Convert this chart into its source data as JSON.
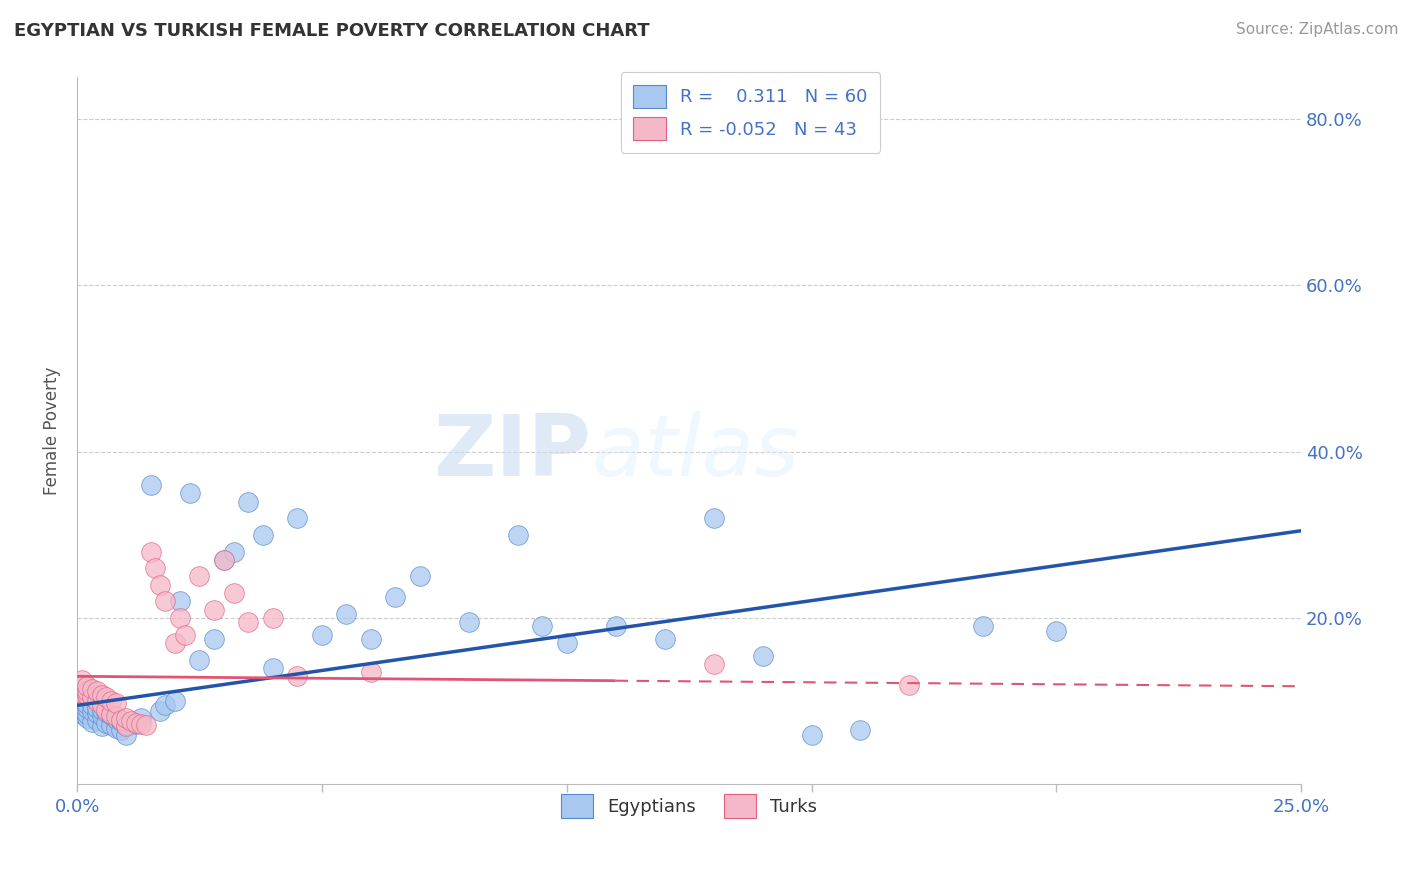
{
  "title": "EGYPTIAN VS TURKISH FEMALE POVERTY CORRELATION CHART",
  "source": "Source: ZipAtlas.com",
  "ylabel": "Female Poverty",
  "xlim": [
    0.0,
    0.25
  ],
  "ylim": [
    0.0,
    0.85
  ],
  "xtick_positions": [
    0.0,
    0.05,
    0.1,
    0.15,
    0.2,
    0.25
  ],
  "xtick_labels": [
    "0.0%",
    "",
    "",
    "",
    "",
    "25.0%"
  ],
  "ytick_positions": [
    0.2,
    0.4,
    0.6,
    0.8
  ],
  "ytick_labels": [
    "20.0%",
    "40.0%",
    "60.0%",
    "80.0%"
  ],
  "color_egyptian": "#a8c8f0",
  "color_turkish": "#f5b8c8",
  "edge_color_egyptian": "#5588cc",
  "edge_color_turkish": "#e06080",
  "line_color_egyptian": "#2255aa",
  "line_color_turkish": "#e05575",
  "watermark_zip": "ZIP",
  "watermark_atlas": "atlas",
  "legend_labels": [
    "R =    0.311   N = 60",
    "R = -0.052   N = 43"
  ],
  "bottom_labels": [
    "Egyptians",
    "Turks"
  ],
  "eg_x": [
    0.001,
    0.001,
    0.001,
    0.001,
    0.002,
    0.002,
    0.002,
    0.002,
    0.003,
    0.003,
    0.003,
    0.004,
    0.004,
    0.004,
    0.005,
    0.005,
    0.005,
    0.006,
    0.006,
    0.007,
    0.007,
    0.008,
    0.008,
    0.009,
    0.009,
    0.01,
    0.01,
    0.012,
    0.013,
    0.015,
    0.017,
    0.018,
    0.02,
    0.021,
    0.023,
    0.025,
    0.028,
    0.03,
    0.032,
    0.035,
    0.038,
    0.04,
    0.045,
    0.05,
    0.055,
    0.06,
    0.065,
    0.07,
    0.08,
    0.09,
    0.095,
    0.1,
    0.11,
    0.12,
    0.13,
    0.14,
    0.15,
    0.16,
    0.185,
    0.2
  ],
  "eg_y": [
    0.085,
    0.09,
    0.095,
    0.1,
    0.08,
    0.085,
    0.092,
    0.097,
    0.075,
    0.088,
    0.095,
    0.078,
    0.086,
    0.092,
    0.07,
    0.082,
    0.09,
    0.074,
    0.087,
    0.072,
    0.083,
    0.068,
    0.079,
    0.065,
    0.076,
    0.06,
    0.072,
    0.073,
    0.08,
    0.36,
    0.088,
    0.095,
    0.1,
    0.22,
    0.35,
    0.15,
    0.175,
    0.27,
    0.28,
    0.34,
    0.3,
    0.14,
    0.32,
    0.18,
    0.205,
    0.175,
    0.225,
    0.25,
    0.195,
    0.3,
    0.19,
    0.17,
    0.19,
    0.175,
    0.32,
    0.155,
    0.06,
    0.065,
    0.19,
    0.185
  ],
  "tr_x": [
    0.001,
    0.001,
    0.001,
    0.001,
    0.002,
    0.002,
    0.002,
    0.003,
    0.003,
    0.004,
    0.004,
    0.005,
    0.005,
    0.006,
    0.006,
    0.007,
    0.007,
    0.008,
    0.008,
    0.009,
    0.01,
    0.01,
    0.011,
    0.012,
    0.013,
    0.014,
    0.015,
    0.016,
    0.017,
    0.018,
    0.02,
    0.021,
    0.022,
    0.025,
    0.028,
    0.03,
    0.032,
    0.035,
    0.04,
    0.045,
    0.06,
    0.13,
    0.17
  ],
  "tr_y": [
    0.11,
    0.115,
    0.12,
    0.125,
    0.108,
    0.112,
    0.118,
    0.105,
    0.115,
    0.1,
    0.112,
    0.095,
    0.108,
    0.09,
    0.105,
    0.085,
    0.1,
    0.082,
    0.098,
    0.078,
    0.07,
    0.08,
    0.076,
    0.074,
    0.073,
    0.071,
    0.28,
    0.26,
    0.24,
    0.22,
    0.17,
    0.2,
    0.18,
    0.25,
    0.21,
    0.27,
    0.23,
    0.195,
    0.2,
    0.13,
    0.135,
    0.145,
    0.12
  ],
  "line_eg_x0": 0.0,
  "line_eg_x1": 0.25,
  "line_eg_y0": 0.095,
  "line_eg_y1": 0.305,
  "line_tr_x0": 0.0,
  "line_tr_x1": 0.25,
  "line_tr_y0": 0.13,
  "line_tr_y1": 0.118,
  "line_tr_solid_end": 0.11
}
